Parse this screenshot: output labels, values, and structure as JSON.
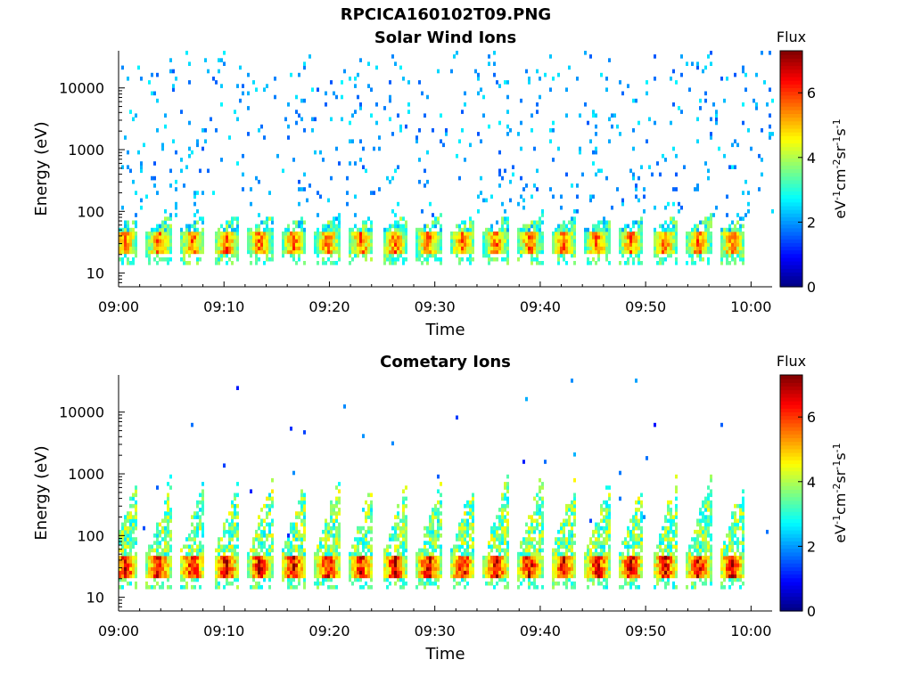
{
  "page": {
    "title": "RPCICA160102T09.PNG"
  },
  "chart_data": [
    {
      "type": "heatmap",
      "title": "Solar Wind Ions",
      "xlabel": "Time",
      "ylabel": "Energy (eV)",
      "y_scale": "log",
      "ylim": [
        6,
        40000
      ],
      "xlim": [
        "09:00",
        "10:02"
      ],
      "x_ticks": [
        "09:00",
        "09:10",
        "09:20",
        "09:30",
        "09:40",
        "09:50",
        "10:00"
      ],
      "y_ticks": [
        "10",
        "100",
        "1000",
        "10000"
      ],
      "y_tick_values": [
        10,
        100,
        1000,
        10000
      ],
      "colorbar": {
        "label": "Flux",
        "unit_label": "eV-1cm-2sr-1s-1",
        "range": [
          0,
          7.3
        ],
        "ticks": [
          "0",
          "2",
          "4",
          "6"
        ],
        "colormap": "jet"
      },
      "pulses": {
        "count": 19,
        "first_minute": 0.5,
        "period_minutes": 3.2,
        "core_energy_band_eV": [
          20,
          50
        ],
        "peak_flux": 6.0,
        "background": "sparse",
        "background_level": 1.5
      }
    },
    {
      "type": "heatmap",
      "title": "Cometary Ions",
      "xlabel": "Time",
      "ylabel": "Energy (eV)",
      "y_scale": "log",
      "ylim": [
        6,
        40000
      ],
      "xlim": [
        "09:00",
        "10:02"
      ],
      "x_ticks": [
        "09:00",
        "09:10",
        "09:20",
        "09:30",
        "09:40",
        "09:50",
        "10:00"
      ],
      "y_ticks": [
        "10",
        "100",
        "1000",
        "10000"
      ],
      "y_tick_values": [
        10,
        100,
        1000,
        10000
      ],
      "colorbar": {
        "label": "Flux",
        "unit_label": "eV-1cm-2sr-1s-1",
        "range": [
          0,
          7.3
        ],
        "ticks": [
          "0",
          "2",
          "4",
          "6"
        ],
        "colormap": "jet"
      },
      "pulses": {
        "count": 19,
        "first_minute": 0.5,
        "period_minutes": 3.2,
        "core_energy_band_eV": [
          20,
          50
        ],
        "peak_flux": 7.0,
        "background": "very sparse",
        "background_level": 1.0,
        "plume_top_eV": 1000
      }
    }
  ]
}
